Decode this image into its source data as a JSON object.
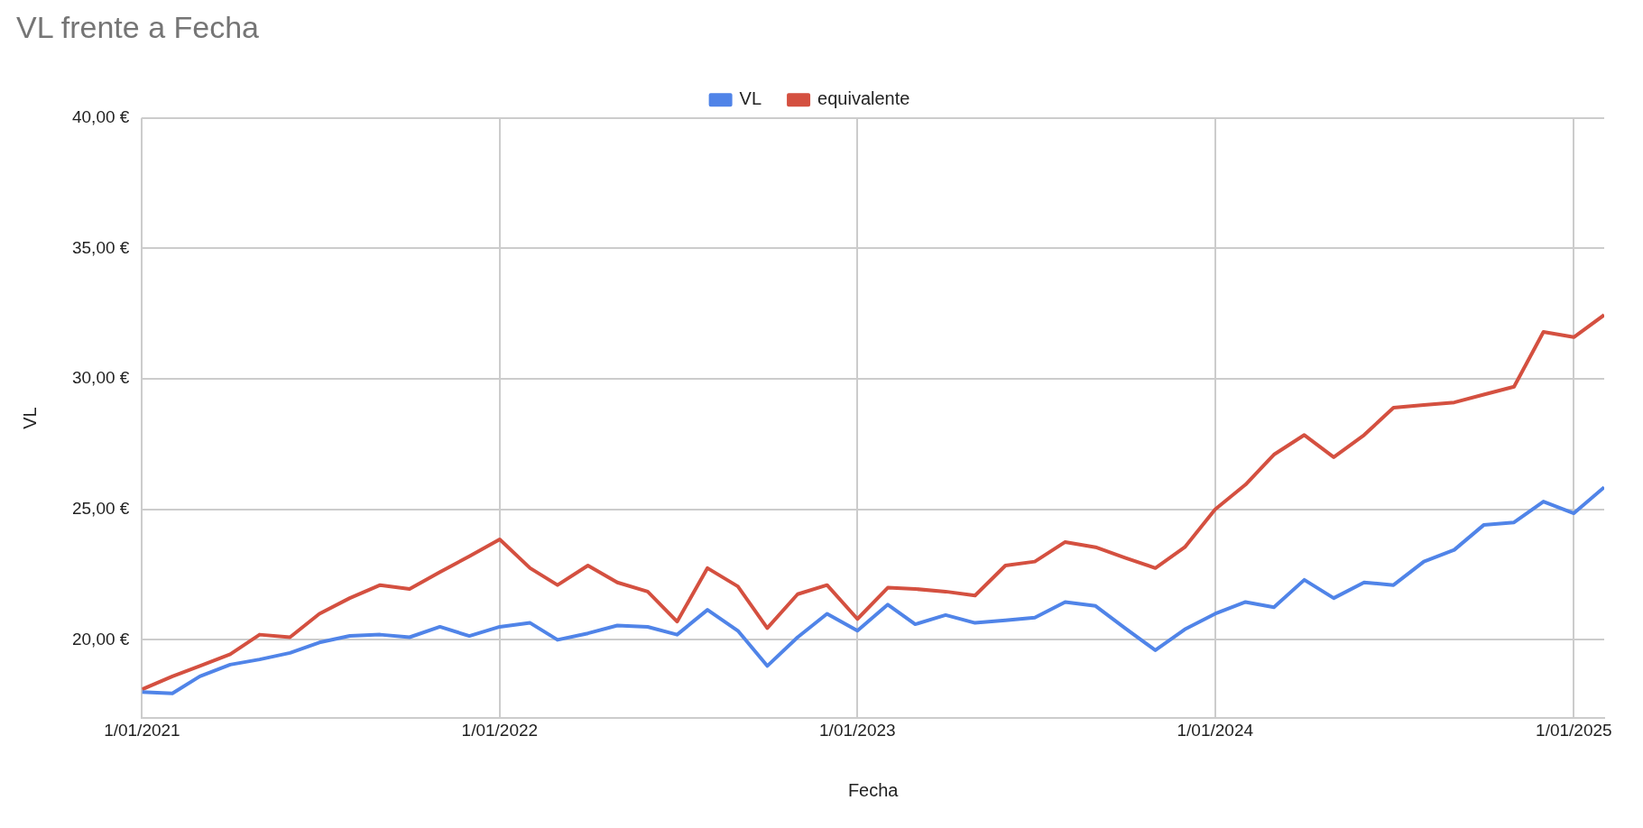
{
  "chart_data": {
    "type": "line",
    "title": "VL frente a Fecha",
    "xlabel": "Fecha",
    "ylabel": "VL",
    "x": [
      "2021-01-01",
      "2021-02-01",
      "2021-03-01",
      "2021-04-01",
      "2021-05-01",
      "2021-06-01",
      "2021-07-01",
      "2021-08-01",
      "2021-09-01",
      "2021-10-01",
      "2021-11-01",
      "2021-12-01",
      "2022-01-01",
      "2022-02-01",
      "2022-03-01",
      "2022-04-01",
      "2022-05-01",
      "2022-06-01",
      "2022-07-01",
      "2022-08-01",
      "2022-09-01",
      "2022-10-01",
      "2022-11-01",
      "2022-12-01",
      "2023-01-01",
      "2023-02-01",
      "2023-03-01",
      "2023-04-01",
      "2023-05-01",
      "2023-06-01",
      "2023-07-01",
      "2023-08-01",
      "2023-09-01",
      "2023-10-01",
      "2023-11-01",
      "2023-12-01",
      "2024-01-01",
      "2024-02-01",
      "2024-03-01",
      "2024-04-01",
      "2024-05-01",
      "2024-06-01",
      "2024-07-01",
      "2024-08-01",
      "2024-09-01",
      "2024-10-01",
      "2024-11-01",
      "2024-12-01",
      "2025-01-01",
      "2025-02-01"
    ],
    "series": [
      {
        "name": "VL",
        "color": "#5084e8",
        "values": [
          18.0,
          17.95,
          18.6,
          19.05,
          19.25,
          19.5,
          19.9,
          20.15,
          20.2,
          20.1,
          20.5,
          20.15,
          20.5,
          20.65,
          20.0,
          20.25,
          20.55,
          20.5,
          20.2,
          21.15,
          20.35,
          19.0,
          20.1,
          21.0,
          20.35,
          21.35,
          20.6,
          20.95,
          20.65,
          20.75,
          20.85,
          21.45,
          21.3,
          20.45,
          19.6,
          20.4,
          21.0,
          21.45,
          21.25,
          22.3,
          21.6,
          22.2,
          22.1,
          23.0,
          23.45,
          24.4,
          24.5,
          25.3,
          24.85,
          25.85
        ]
      },
      {
        "name": "equivalente",
        "color": "#d45040",
        "values": [
          18.1,
          18.6,
          19.0,
          19.45,
          20.2,
          20.1,
          21.0,
          21.6,
          22.1,
          21.95,
          22.6,
          23.2,
          23.85,
          22.75,
          22.1,
          22.85,
          22.2,
          21.85,
          20.7,
          22.75,
          22.05,
          20.45,
          21.75,
          22.1,
          20.8,
          22.0,
          21.95,
          21.85,
          21.7,
          22.85,
          23.0,
          23.75,
          23.55,
          23.15,
          22.75,
          23.55,
          25.0,
          25.95,
          27.1,
          27.85,
          27.0,
          27.85,
          28.9,
          29.0,
          29.1,
          29.4,
          29.7,
          31.8,
          31.6,
          32.45
        ]
      }
    ],
    "xlim": [
      "2021-01-01",
      "2025-02-01"
    ],
    "xticks": [
      {
        "value": "2021-01-01",
        "label": "1/01/2021"
      },
      {
        "value": "2022-01-01",
        "label": "1/01/2022"
      },
      {
        "value": "2023-01-01",
        "label": "1/01/2023"
      },
      {
        "value": "2024-01-01",
        "label": "1/01/2024"
      },
      {
        "value": "2025-01-01",
        "label": "1/01/2025"
      }
    ],
    "ylim": [
      17,
      40
    ],
    "yticks": [
      {
        "value": 20,
        "label": "20,00 €"
      },
      {
        "value": 25,
        "label": "25,00 €"
      },
      {
        "value": 30,
        "label": "30,00 €"
      },
      {
        "value": 35,
        "label": "35,00 €"
      },
      {
        "value": 40,
        "label": "40,00 €"
      }
    ],
    "grid": true,
    "legend": "top",
    "marker": "none",
    "line_style": "solid"
  }
}
